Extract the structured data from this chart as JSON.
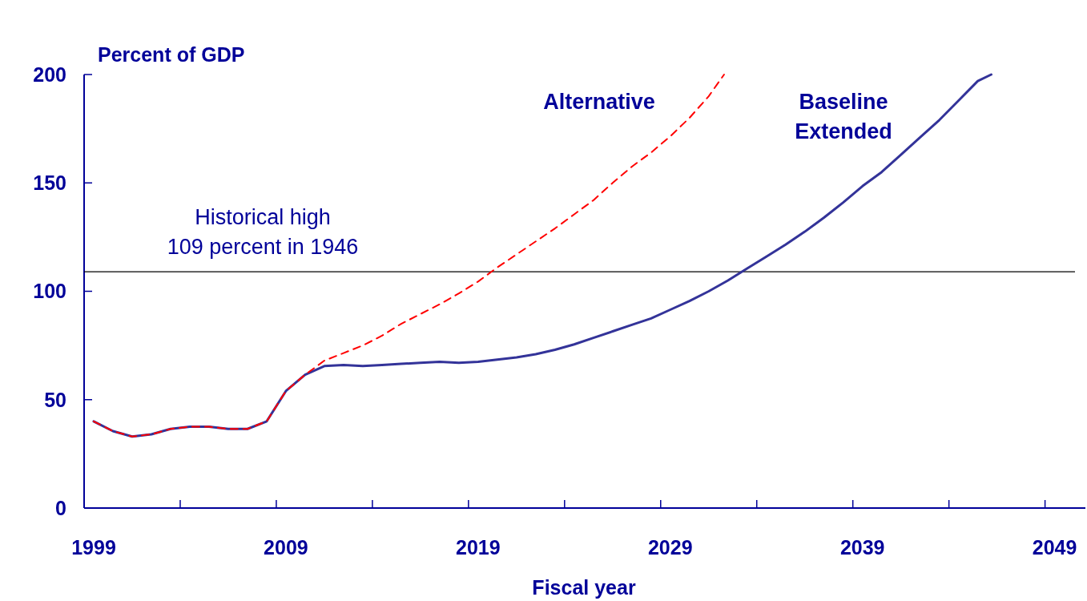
{
  "chart_data": {
    "type": "line",
    "ylabel": "Percent of GDP",
    "xlabel": "Fiscal year",
    "xlim": [
      1998.5,
      2050.6
    ],
    "xticks": [
      {
        "value": 1999,
        "label": "1999"
      },
      {
        "value": 2003.5,
        "label": null
      },
      {
        "value": 2008.5,
        "label": null
      },
      {
        "value": 2009,
        "label": "2009"
      },
      {
        "value": 2013.5,
        "label": null
      },
      {
        "value": 2018.5,
        "label": null
      },
      {
        "value": 2019,
        "label": "2019"
      },
      {
        "value": 2023.5,
        "label": null
      },
      {
        "value": 2028.5,
        "label": null
      },
      {
        "value": 2029,
        "label": "2029"
      },
      {
        "value": 2033.5,
        "label": null
      },
      {
        "value": 2038.5,
        "label": null
      },
      {
        "value": 2039,
        "label": "2039"
      },
      {
        "value": 2043.5,
        "label": null
      },
      {
        "value": 2048.5,
        "label": null
      },
      {
        "value": 2049,
        "label": "2049"
      }
    ],
    "ylim": [
      0,
      200
    ],
    "yticks": [
      0,
      50,
      100,
      150,
      200
    ],
    "grid": false,
    "legend": false,
    "ref_lines": [
      {
        "axis": "y",
        "value": 109,
        "label": "Historical high\n109 percent in 1946",
        "color": "#000000"
      }
    ],
    "series": [
      {
        "name": "Baseline\nExtended",
        "color": "#333399",
        "line_style": "solid",
        "x": [
          1999,
          2000,
          2001,
          2002,
          2003,
          2004,
          2005,
          2006,
          2007,
          2008,
          2009,
          2010,
          2011,
          2012,
          2013,
          2014,
          2015,
          2016,
          2017,
          2018,
          2019,
          2020,
          2021,
          2022,
          2023,
          2024,
          2025,
          2026,
          2027,
          2028,
          2029,
          2030,
          2031,
          2032,
          2033,
          2034,
          2035,
          2036,
          2037,
          2038,
          2039,
          2040,
          2041,
          2042,
          2043,
          2044,
          2045,
          2045.7
        ],
        "values": [
          40,
          35.5,
          33,
          34,
          36.5,
          37.5,
          37.5,
          36.5,
          36.5,
          40,
          54,
          61.5,
          65.5,
          66,
          65.5,
          66,
          66.5,
          67,
          67.5,
          67,
          67.5,
          68.5,
          69.5,
          71,
          73,
          75.5,
          78.5,
          81.5,
          84.5,
          87.5,
          91.5,
          95.5,
          100,
          105,
          110.5,
          116,
          121.5,
          127.5,
          134,
          141,
          148.5,
          155,
          163,
          171,
          179,
          188,
          197,
          200
        ]
      },
      {
        "name": "Alternative",
        "color": "#ff0000",
        "line_style": "dashed",
        "x": [
          1999,
          2000,
          2001,
          2002,
          2003,
          2004,
          2005,
          2006,
          2007,
          2008,
          2009,
          2010,
          2011,
          2012,
          2013,
          2014,
          2015,
          2016,
          2017,
          2018,
          2019,
          2020,
          2021,
          2022,
          2023,
          2024,
          2025,
          2026,
          2027,
          2028,
          2029,
          2030,
          2031,
          2031.8
        ],
        "values": [
          40,
          35.5,
          33,
          34,
          36.5,
          37.5,
          37.5,
          36.5,
          36.5,
          40,
          54,
          61.5,
          68,
          71.5,
          75,
          79.5,
          85,
          89.5,
          94,
          99,
          104.5,
          111,
          117,
          123,
          129,
          135.5,
          142,
          150,
          157.5,
          164,
          171.5,
          180,
          190,
          200
        ]
      }
    ]
  }
}
